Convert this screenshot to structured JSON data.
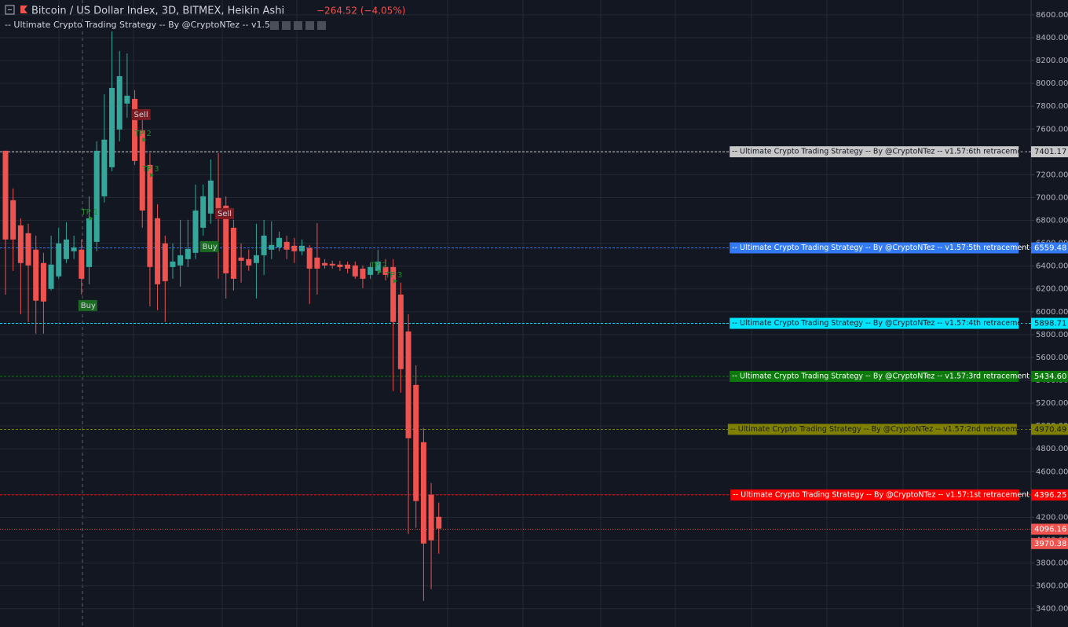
{
  "chart_data": {
    "type": "candlestick",
    "title": "Bitcoin / US Dollar Index, 3D, BITMEX, Heikin Ashi",
    "change": "−264.52 (−4.05%)",
    "indicator": "-- Ultimate Crypto Trading Strategy -- By @CryptoNTez -- v1.57",
    "up_color": "#35a69a",
    "down_color": "#ef5350",
    "open": [
      7410,
      6977,
      6757,
      6688,
      6544,
      6427,
      6200,
      6310,
      6461,
      6530,
      6544,
      6392,
      6612,
      7011,
      7266,
      7596,
      7823,
      7864,
      7589,
      7286,
      6819,
      6599,
      6392,
      6406,
      6461,
      6516,
      6736,
      6860,
      6997,
      6929,
      6736,
      6475,
      6461,
      6427,
      6495,
      6544,
      6564,
      6612,
      6578,
      6530,
      6557,
      6475,
      6427,
      6420,
      6413,
      6413,
      6406,
      6378,
      6323,
      6358,
      6392,
      6392,
      6151,
      5828,
      5360,
      4858,
      4398,
      4205
    ],
    "high": [
      7410,
      7080,
      6819,
      6771,
      6667,
      6516,
      6667,
      6736,
      6784,
      6667,
      6633,
      7011,
      7493,
      7905,
      8456,
      8284,
      8263,
      7940,
      7699,
      7389,
      6942,
      6667,
      6599,
      6805,
      6805,
      7114,
      7114,
      7334,
      7389,
      7011,
      6805,
      6599,
      6544,
      6771,
      6805,
      6792,
      6702,
      6667,
      6647,
      6633,
      6585,
      6777,
      6461,
      6447,
      6447,
      6440,
      6440,
      6406,
      6427,
      6544,
      6461,
      6461,
      6255,
      5979,
      5532,
      4982,
      4501,
      4329
    ],
    "low": [
      6151,
      6358,
      5979,
      5911,
      5808,
      5808,
      6186,
      6289,
      6427,
      6461,
      6151,
      6241,
      6530,
      6956,
      7231,
      7493,
      7699,
      7286,
      6736,
      6048,
      6014,
      5911,
      6289,
      6220,
      6392,
      6461,
      6667,
      6771,
      6289,
      6117,
      6186,
      6255,
      6358,
      6117,
      6323,
      6461,
      6530,
      6461,
      6427,
      6495,
      6069,
      6151,
      6378,
      6378,
      6358,
      6337,
      6289,
      6207,
      6289,
      6323,
      6275,
      5306,
      5292,
      4054,
      4109,
      3469,
      3572,
      3882
    ],
    "close": [
      6633,
      6633,
      6427,
      6406,
      6097,
      6090,
      6413,
      6599,
      6633,
      6564,
      6289,
      6819,
      7410,
      7507,
      7960,
      8063,
      7892,
      7321,
      6887,
      6392,
      6241,
      6268,
      6440,
      6495,
      6550,
      6887,
      7011,
      7149,
      6839,
      6337,
      6289,
      6447,
      6406,
      6495,
      6667,
      6585,
      6647,
      6544,
      6530,
      6578,
      6378,
      6378,
      6406,
      6406,
      6392,
      6378,
      6310,
      6289,
      6392,
      6440,
      6323,
      5911,
      5498,
      4893,
      4343,
      3971,
      3999,
      4102
    ],
    "signals": [
      {
        "label": "TP 1",
        "index": 11
      },
      {
        "label": "Buy",
        "index": 10
      },
      {
        "label": "Sell",
        "index": 17
      },
      {
        "label": "TP 2",
        "index": 18
      },
      {
        "label": "TP 3",
        "index": 19
      },
      {
        "label": "Sell",
        "index": 28
      },
      {
        "label": "Buy",
        "index": 26
      },
      {
        "label": "TP 2",
        "index": 49
      },
      {
        "label": "TP 3",
        "index": 51
      }
    ],
    "levels": [
      {
        "label": "-- Ultimate Crypto Trading Strategy -- By @CryptoNTez -- v1.57:6th retracement",
        "value": 7401.17,
        "value_label": "7401.17",
        "color": "#c8c8c8"
      },
      {
        "label": "-- Ultimate Crypto Trading Strategy -- By @CryptoNTez -- v1.57:5th retracement",
        "value": 6559.48,
        "value_label": "6559.48",
        "color": "#3179f5"
      },
      {
        "label": "-- Ultimate Crypto Trading Strategy -- By @CryptoNTez -- v1.57:4th retracement",
        "value": 5898.71,
        "value_label": "5898.71",
        "color": "#00e5ff"
      },
      {
        "label": "-- Ultimate Crypto Trading Strategy -- By @CryptoNTez -- v1.57:3rd retracement",
        "value": 5434.6,
        "value_label": "5434.60",
        "color": "#0b7a0b"
      },
      {
        "label": "-- Ultimate Crypto Trading Strategy -- By @CryptoNTez -- v1.57:2nd retracement",
        "value": 4970.49,
        "value_label": "4970.49",
        "color": "#808000"
      },
      {
        "label": "-- Ultimate Crypto Trading Strategy -- By @CryptoNTez -- v1.57:1st  retracement",
        "value": 4396.25,
        "value_label": "4396.25",
        "color": "#ff0000"
      }
    ],
    "price_markers": [
      {
        "value": 4096.16,
        "value_label": "4096.16",
        "color": "#ef5350"
      },
      {
        "value": 3970.38,
        "value_label": "3970.38",
        "color": "#ef5350"
      }
    ],
    "ylim": [
      3240,
      8730
    ],
    "yticks": [
      {
        "value": 3400,
        "label": "3400.00"
      },
      {
        "value": 3600,
        "label": "3600.00"
      },
      {
        "value": 3800,
        "label": "3800.00"
      },
      {
        "value": 4000,
        "label": "4000.00"
      },
      {
        "value": 4200,
        "label": "4200.00"
      },
      {
        "value": 4400,
        "label": "4400.00"
      },
      {
        "value": 4600,
        "label": "4600.00"
      },
      {
        "value": 4800,
        "label": "4800.00"
      },
      {
        "value": 5000,
        "label": "5000.00"
      },
      {
        "value": 5200,
        "label": "5200.00"
      },
      {
        "value": 5400,
        "label": "5400.00"
      },
      {
        "value": 5600,
        "label": "5600.00"
      },
      {
        "value": 5800,
        "label": "5800.00"
      },
      {
        "value": 6000,
        "label": "6000.00"
      },
      {
        "value": 6200,
        "label": "6200.00"
      },
      {
        "value": 6400,
        "label": "6400.00"
      },
      {
        "value": 6600,
        "label": "6600.00"
      },
      {
        "value": 6800,
        "label": "6800.00"
      },
      {
        "value": 7000,
        "label": "7000.00"
      },
      {
        "value": 7200,
        "label": "7200.00"
      },
      {
        "value": 7400,
        "label": "7400.00"
      },
      {
        "value": 7600,
        "label": "7600.00"
      },
      {
        "value": 7800,
        "label": "7800.00"
      },
      {
        "value": 8000,
        "label": "8000.00"
      },
      {
        "value": 8200,
        "label": "8200.00"
      },
      {
        "value": 8400,
        "label": "8400.00"
      },
      {
        "value": 8600,
        "label": "8600.00"
      }
    ],
    "grid": true
  }
}
